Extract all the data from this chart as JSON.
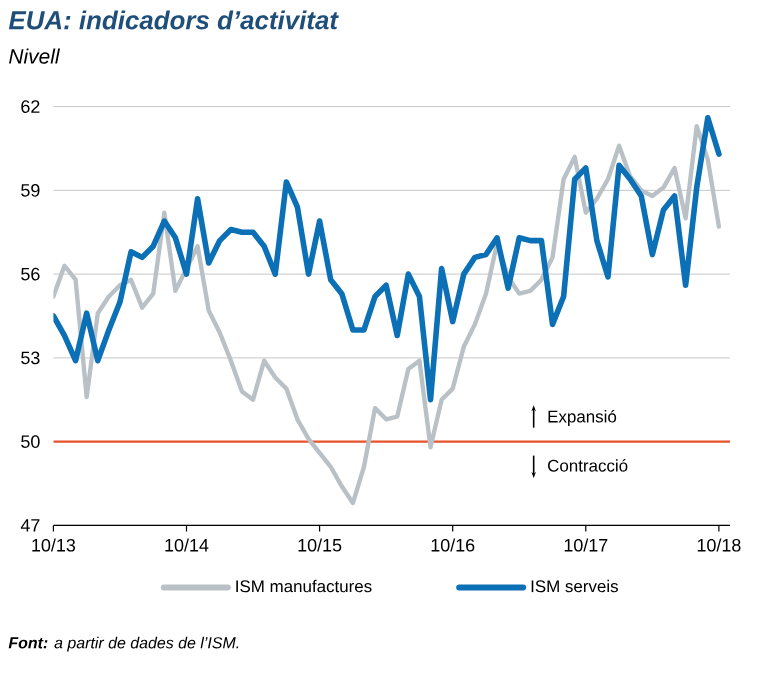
{
  "chart_data": {
    "type": "line",
    "title": "EUA: indicadors d’activitat",
    "subtitle": "Nivell",
    "x": [
      "2013-10",
      "2013-11",
      "2013-12",
      "2014-01",
      "2014-02",
      "2014-03",
      "2014-04",
      "2014-05",
      "2014-06",
      "2014-07",
      "2014-08",
      "2014-09",
      "2014-10",
      "2014-11",
      "2014-12",
      "2015-01",
      "2015-02",
      "2015-03",
      "2015-04",
      "2015-05",
      "2015-06",
      "2015-07",
      "2015-08",
      "2015-09",
      "2015-10",
      "2015-11",
      "2015-12",
      "2016-01",
      "2016-02",
      "2016-03",
      "2016-04",
      "2016-05",
      "2016-06",
      "2016-07",
      "2016-08",
      "2016-09",
      "2016-10",
      "2016-11",
      "2016-12",
      "2017-01",
      "2017-02",
      "2017-03",
      "2017-04",
      "2017-05",
      "2017-06",
      "2017-07",
      "2017-08",
      "2017-09",
      "2017-10",
      "2017-11",
      "2017-12",
      "2018-01",
      "2018-02",
      "2018-03",
      "2018-04",
      "2018-05",
      "2018-06",
      "2018-07",
      "2018-08",
      "2018-09",
      "2018-10"
    ],
    "series": [
      {
        "name": "ISM manufactures",
        "color": "#b9c1c6",
        "values": [
          55.2,
          56.3,
          55.8,
          51.6,
          54.6,
          55.2,
          55.6,
          55.8,
          54.8,
          55.3,
          58.2,
          55.4,
          56.2,
          57.0,
          54.7,
          53.9,
          52.9,
          51.8,
          51.5,
          52.9,
          52.3,
          51.9,
          50.8,
          50.1,
          49.6,
          49.1,
          48.4,
          47.8,
          49.1,
          51.2,
          50.8,
          50.9,
          52.6,
          52.9,
          49.8,
          51.5,
          51.9,
          53.4,
          54.2,
          55.3,
          57.1,
          55.9,
          55.3,
          55.4,
          55.8,
          56.6,
          59.4,
          60.2,
          58.2,
          58.7,
          59.4,
          60.6,
          59.5,
          59.0,
          58.8,
          59.1,
          59.8,
          58.0,
          61.3,
          60.1,
          57.7
        ]
      },
      {
        "name": "ISM serveis",
        "color": "#0b70b5",
        "values": [
          54.5,
          53.8,
          52.9,
          54.6,
          52.9,
          54.0,
          55.0,
          56.8,
          56.6,
          57.0,
          57.9,
          57.3,
          56.0,
          58.7,
          56.4,
          57.2,
          57.6,
          57.5,
          57.5,
          57.0,
          56.0,
          59.3,
          58.4,
          56.0,
          57.9,
          55.8,
          55.3,
          54.0,
          54.0,
          55.2,
          55.6,
          53.8,
          56.0,
          55.2,
          51.5,
          56.2,
          54.3,
          56.0,
          56.6,
          56.7,
          57.3,
          55.5,
          57.3,
          57.2,
          57.2,
          54.2,
          55.2,
          59.4,
          59.8,
          57.2,
          55.9,
          59.9,
          59.4,
          58.8,
          56.7,
          58.3,
          58.8,
          55.6,
          59.1,
          61.6,
          60.3
        ]
      }
    ],
    "xlim": [
      "2013-10",
      "2018-11"
    ],
    "xticks": [
      {
        "value": "2013-10",
        "label": "10/13"
      },
      {
        "value": "2014-10",
        "label": "10/14"
      },
      {
        "value": "2015-10",
        "label": "10/15"
      },
      {
        "value": "2016-10",
        "label": "10/16"
      },
      {
        "value": "2017-10",
        "label": "10/17"
      },
      {
        "value": "2018-10",
        "label": "10/18"
      }
    ],
    "ylim": [
      47,
      62
    ],
    "yticks": [
      47,
      50,
      53,
      56,
      59,
      62
    ],
    "grid": "y",
    "legend": "bottom",
    "marker": "none",
    "line_style": "solid",
    "ref_lines": [
      {
        "axis": "y",
        "value": 50,
        "color": "#e8532b"
      }
    ],
    "annotations": [
      "Expansió",
      "Contracció",
      "**Font:** a partir de dades de l’ISM."
    ]
  }
}
